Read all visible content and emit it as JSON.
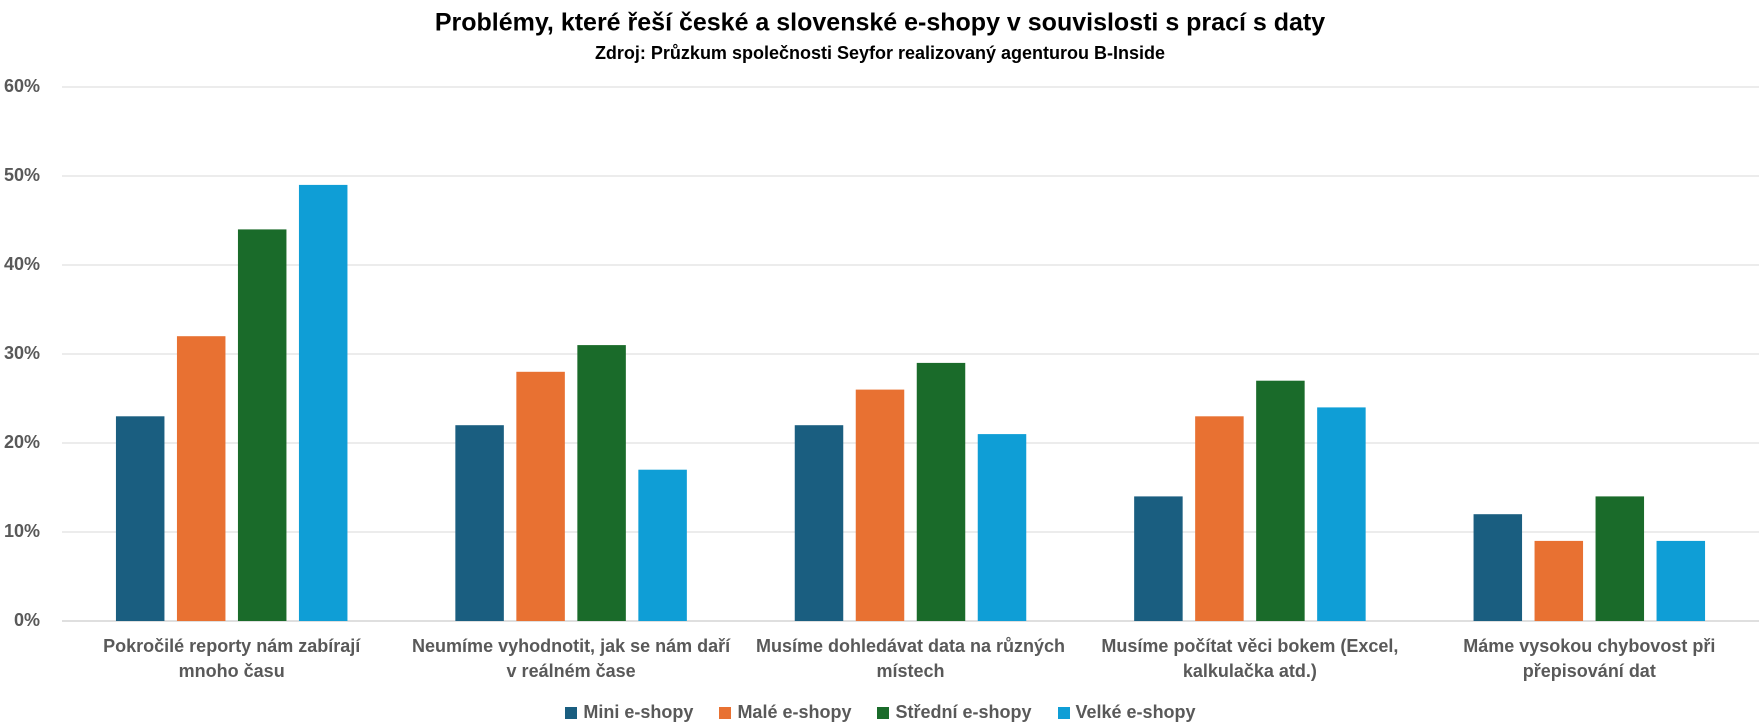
{
  "chart_data": {
    "type": "bar",
    "title": "Problémy, které řeší české a slovenské e-shopy v souvislosti s prací s daty",
    "subtitle": "Zdroj: Průzkum společnosti Seyfor realizovaný agenturou B-Inside",
    "categories": [
      "Pokročilé reporty nám zabírají mnoho času",
      "Neumíme vyhodnotit, jak se nám daří v reálném čase",
      "Musíme dohledávat data na různých místech",
      "Musíme počítat věci bokem (Excel, kalkulačka atd.)",
      "Máme vysokou chybovost při přepisování dat"
    ],
    "series": [
      {
        "name": "Mini e-shopy",
        "color": "#1a5e80",
        "values": [
          23,
          22,
          22,
          14,
          12
        ]
      },
      {
        "name": "Malé e-shopy",
        "color": "#e87132",
        "values": [
          32,
          28,
          26,
          23,
          9
        ]
      },
      {
        "name": "Střední e-shopy",
        "color": "#1a6b2a",
        "values": [
          44,
          31,
          29,
          27,
          14
        ]
      },
      {
        "name": "Velké e-shopy",
        "color": "#0f9ed6",
        "values": [
          49,
          17,
          21,
          24,
          9
        ]
      }
    ],
    "ylim": [
      0,
      60
    ],
    "yticks": [
      {
        "value": 0,
        "label": "0%"
      },
      {
        "value": 10,
        "label": "10%"
      },
      {
        "value": 20,
        "label": "20%"
      },
      {
        "value": 30,
        "label": "30%"
      },
      {
        "value": 40,
        "label": "40%"
      },
      {
        "value": 50,
        "label": "50%"
      },
      {
        "value": 60,
        "label": "60%"
      }
    ],
    "grid": true,
    "legend": "bottom"
  }
}
